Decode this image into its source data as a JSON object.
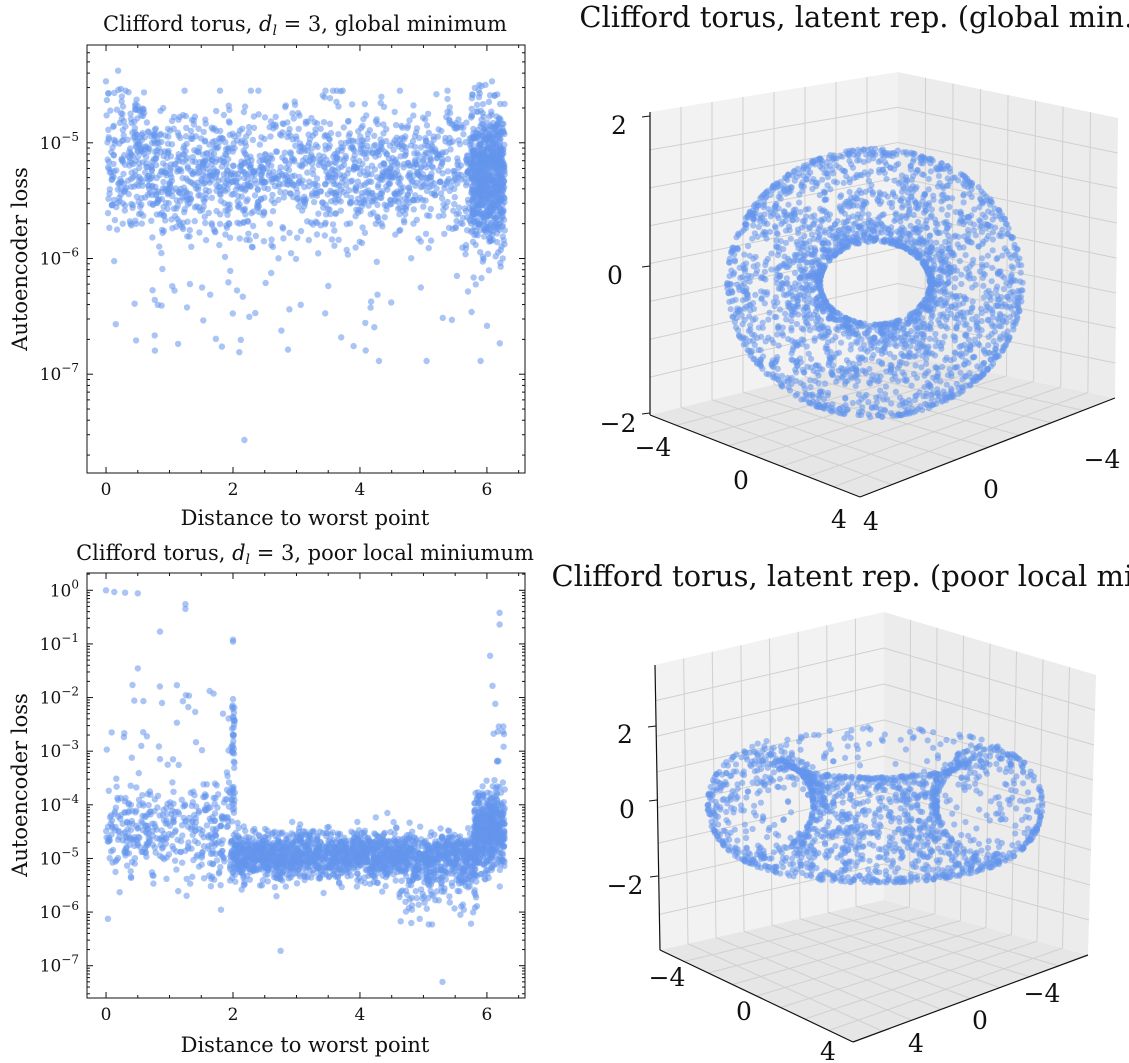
{
  "colors": {
    "marker": "#6495ED",
    "axis": "#111111",
    "grid": "#d0d0d0",
    "pane": "#f2f2f2"
  },
  "chart_data": [
    {
      "type": "scatter",
      "title": "Clifford torus, d_l = 3, global minimum",
      "title_parts": [
        "Clifford torus, ",
        "d",
        "l",
        " = 3, global minimum"
      ],
      "xlabel": "Distance to worst point",
      "ylabel": "Autoencoder loss",
      "yscale": "log",
      "xlim": [
        -0.3,
        6.6
      ],
      "ylim": [
        1.4e-08,
        7e-05
      ],
      "xticks": [
        0,
        2,
        4,
        6
      ],
      "yticks": [
        {
          "value": 1e-05,
          "label": "10",
          "exp": "−5"
        },
        {
          "value": 1e-06,
          "label": "10",
          "exp": "−6"
        },
        {
          "value": 1e-07,
          "label": "10",
          "exp": "−7"
        }
      ],
      "grid": false,
      "n_points": 2600,
      "points_model": "dense band between 1e-6 and 3e-5 across x in [0, 6.28], densest near x≈6.1; few outliers down to ~2.7e-8 near x≈2.2",
      "notable_points": [
        [
          0.0,
          3.4e-05
        ],
        [
          0.13,
          2.7e-05
        ],
        [
          2.18,
          2.7e-08
        ],
        [
          0.77,
          1.6e-07
        ],
        [
          2.1,
          1.55e-07
        ],
        [
          3.9,
          1.75e-07
        ],
        [
          4.3,
          1.3e-07
        ],
        [
          5.05,
          1.3e-07
        ],
        [
          5.9,
          1.3e-07
        ],
        [
          6.08,
          3.4e-05
        ]
      ],
      "legend": "none"
    },
    {
      "type": "scatter3d",
      "title": "Clifford torus, latent rep. (global min.)",
      "zticks": [
        "2",
        "0",
        "−2"
      ],
      "xticks": [
        "−4",
        "0",
        "4"
      ],
      "yticks": [
        "4",
        "0",
        "−4"
      ],
      "shape": "torus seen tilted, hole near center",
      "n_points": 2600
    },
    {
      "type": "scatter",
      "title": "Clifford torus, d_l = 3, poor local miniumum",
      "title_parts": [
        "Clifford torus, ",
        "d",
        "l",
        " = 3, poor local miniumum"
      ],
      "xlabel": "Distance to worst point",
      "ylabel": "Autoencoder loss",
      "yscale": "log",
      "xlim": [
        -0.3,
        6.6
      ],
      "ylim": [
        2.5e-08,
        2.1
      ],
      "xticks": [
        0,
        2,
        4,
        6
      ],
      "yticks": [
        {
          "value": 1,
          "label": "10",
          "exp": "0"
        },
        {
          "value": 0.1,
          "label": "10",
          "exp": "−1"
        },
        {
          "value": 0.01,
          "label": "10",
          "exp": "−2"
        },
        {
          "value": 0.001,
          "label": "10",
          "exp": "−3"
        },
        {
          "value": 0.0001,
          "label": "10",
          "exp": "−4"
        },
        {
          "value": 1e-05,
          "label": "10",
          "exp": "−5"
        },
        {
          "value": 1e-06,
          "label": "10",
          "exp": "−6"
        },
        {
          "value": 1e-07,
          "label": "10",
          "exp": "−7"
        }
      ],
      "grid": false,
      "n_points": 2600,
      "points_model": "U-shaped: elevated loss (1e-4 to 1e0) for x<2 and x>5.8, dense band ~1e-5 in between",
      "notable_points": [
        [
          0.0,
          1.0
        ],
        [
          0.13,
          0.93
        ],
        [
          0.3,
          0.9
        ],
        [
          0.5,
          0.88
        ],
        [
          1.25,
          0.55
        ],
        [
          1.25,
          0.45
        ],
        [
          0.85,
          0.17
        ],
        [
          2.0,
          0.11
        ],
        [
          2.0,
          0.12
        ],
        [
          0.5,
          0.035
        ],
        [
          6.2,
          0.38
        ],
        [
          6.2,
          0.23
        ],
        [
          6.05,
          0.06
        ],
        [
          2.75,
          1.9e-07
        ],
        [
          5.3,
          5e-08
        ]
      ],
      "legend": "none"
    },
    {
      "type": "scatter3d",
      "title": "Clifford torus, latent rep. (poor local min.)",
      "zticks": [
        "2",
        "0",
        "−2"
      ],
      "xticks": [
        "−4",
        "0",
        "4"
      ],
      "yticks": [
        "4",
        "0",
        "−4"
      ],
      "shape": "torus seen nearly edge-on, points sparse on front rim",
      "n_points": 2600
    }
  ]
}
